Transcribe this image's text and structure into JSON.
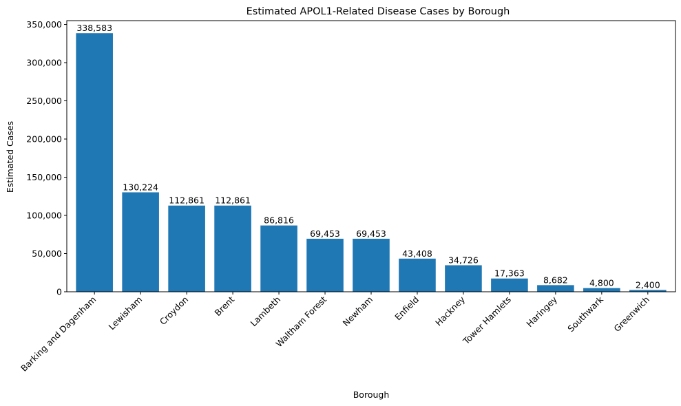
{
  "chart_data": {
    "type": "bar",
    "title": "Estimated APOL1-Related Disease Cases by Borough",
    "xlabel": "Borough",
    "ylabel": "Estimated Cases",
    "ylim": [
      0,
      355000
    ],
    "yticks": [
      0,
      50000,
      100000,
      150000,
      200000,
      250000,
      300000,
      350000
    ],
    "ytick_labels": [
      "0",
      "50,000",
      "100,000",
      "150,000",
      "200,000",
      "250,000",
      "300,000",
      "350,000"
    ],
    "grid": false,
    "bar_color": "#1f77b4",
    "categories": [
      "Barking and Dagenham",
      "Lewisham",
      "Croydon",
      "Brent",
      "Lambeth",
      "Waltham Forest",
      "Newham",
      "Enfield",
      "Hackney",
      "Tower Hamlets",
      "Haringey",
      "Southwark",
      "Greenwich"
    ],
    "values": [
      338583,
      130224,
      112861,
      112861,
      86816,
      69453,
      69453,
      43408,
      34726,
      17363,
      8682,
      4800,
      2400
    ],
    "value_labels": [
      "338,583",
      "130,224",
      "112,861",
      "112,861",
      "86,816",
      "69,453",
      "69,453",
      "43,408",
      "34,726",
      "17,363",
      "8,682",
      "4,800",
      "2,400"
    ]
  }
}
